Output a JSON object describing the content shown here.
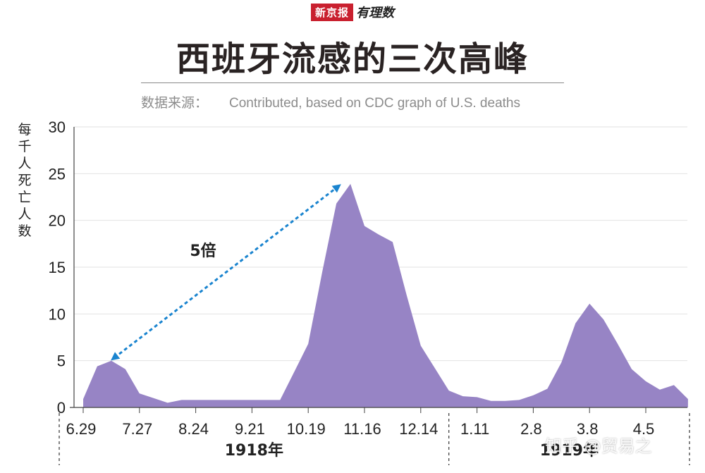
{
  "header": {
    "brand_name": "新京报",
    "brand_sub": "有理数",
    "title": "西班牙流感的三次高峰",
    "source_label": "数据来源：",
    "source_text": "Contributed, based on CDC graph of U.S. deaths"
  },
  "watermark": "知乎 @贸易之",
  "chart_data": {
    "type": "area",
    "title": "西班牙流感的三次高峰",
    "ylabel": "每千人死亡人数",
    "xlabel": "",
    "ylim": [
      0,
      30
    ],
    "y_ticks": [
      0,
      5,
      10,
      15,
      20,
      25,
      30
    ],
    "grid": true,
    "x_tick_labels": [
      "6.29",
      "7.27",
      "8.24",
      "9.21",
      "10.19",
      "11.16",
      "12.14",
      "1.11",
      "2.8",
      "3.8",
      "4.5"
    ],
    "year_groups": [
      {
        "label": "1918年",
        "from": "6.29",
        "to": "12.14"
      },
      {
        "label": "1919年",
        "from": "1.11",
        "to": "4.5"
      }
    ],
    "series": [
      {
        "color": "#9784c5",
        "x": [
          0,
          1,
          2,
          3,
          4,
          5,
          6,
          7,
          8,
          9,
          10,
          11,
          12,
          13,
          14,
          15,
          16,
          17,
          18,
          19,
          20,
          21,
          22,
          23,
          24,
          25,
          26,
          27,
          28,
          29,
          30,
          31,
          32,
          33,
          34,
          35,
          36,
          37,
          38,
          39,
          40,
          41,
          42,
          43
        ],
        "values": [
          0.9,
          4.4,
          5.0,
          4.1,
          1.5,
          1.0,
          0.5,
          0.8,
          0.8,
          0.8,
          0.8,
          0.8,
          0.8,
          0.8,
          0.8,
          3.8,
          6.8,
          14.5,
          21.8,
          23.9,
          19.4,
          18.5,
          17.7,
          12.0,
          6.6,
          4.2,
          1.8,
          1.2,
          1.1,
          0.7,
          0.7,
          0.8,
          1.3,
          2.0,
          4.8,
          9.0,
          11.1,
          9.4,
          6.8,
          4.1,
          2.8,
          1.9,
          2.4,
          0.9
        ]
      }
    ],
    "annotations": [
      {
        "text": "5倍",
        "type": "double-arrow",
        "from_x": 2,
        "from_y": 5.0,
        "to_x": 19,
        "to_y": 23.9,
        "color": "#1a84cf"
      }
    ]
  }
}
